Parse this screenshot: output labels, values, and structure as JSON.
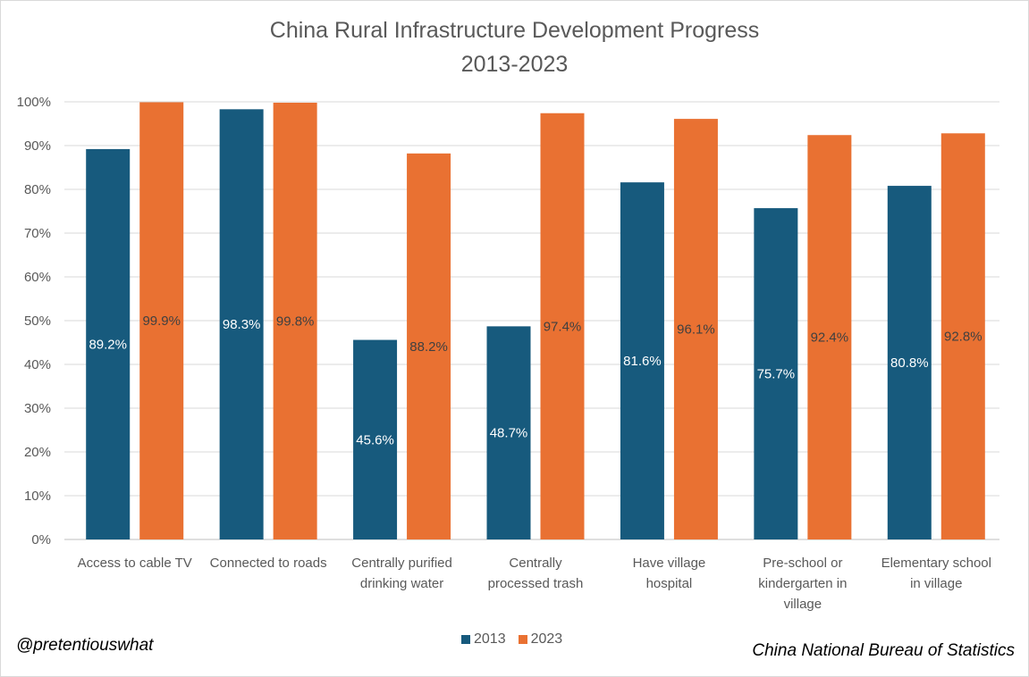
{
  "chart_data": {
    "type": "bar",
    "title_line1": "China Rural Infrastructure Development Progress",
    "title_line2": "2013-2023",
    "categories": [
      [
        "Access to cable TV"
      ],
      [
        "Connected to roads"
      ],
      [
        "Centrally purified",
        "drinking water"
      ],
      [
        "Centrally",
        "processed trash"
      ],
      [
        "Have village",
        "hospital"
      ],
      [
        "Pre-school or",
        "kindergarten in",
        "village"
      ],
      [
        "Elementary school",
        "in village"
      ]
    ],
    "series": [
      {
        "name": "2013",
        "color": "#175a7d",
        "values": [
          89.2,
          98.3,
          45.6,
          48.7,
          81.6,
          75.7,
          80.8
        ],
        "labels": [
          "89.2%",
          "98.3%",
          "45.6%",
          "48.7%",
          "81.6%",
          "75.7%",
          "80.8%"
        ],
        "label_color": "#ffffff"
      },
      {
        "name": "2023",
        "color": "#e97132",
        "values": [
          99.9,
          99.8,
          88.2,
          97.4,
          96.1,
          92.4,
          92.8
        ],
        "labels": [
          "99.9%",
          "99.8%",
          "88.2%",
          "97.4%",
          "96.1%",
          "92.4%",
          "92.8%"
        ],
        "label_color": "#404040"
      }
    ],
    "ylim": [
      0,
      100
    ],
    "yticks": [
      "0%",
      "10%",
      "20%",
      "30%",
      "40%",
      "50%",
      "60%",
      "70%",
      "80%",
      "90%",
      "100%"
    ],
    "grid": true,
    "legend_position": "bottom"
  },
  "credits": {
    "left": "@pretentiouswhat",
    "right": "China National Bureau of Statistics"
  }
}
